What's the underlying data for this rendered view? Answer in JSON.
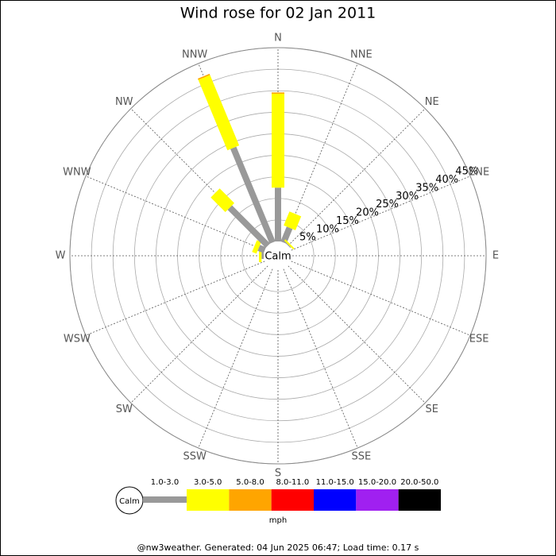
{
  "chart_data": {
    "type": "windrose",
    "title": "Wind rose for 02 Jan 2011",
    "categories": [
      "N",
      "NNE",
      "NE",
      "ENE",
      "E",
      "ESE",
      "SE",
      "SSE",
      "S",
      "SSW",
      "SW",
      "WSW",
      "W",
      "WNW",
      "NW",
      "NNW"
    ],
    "series": [
      {
        "name": "1.0-3.0",
        "color": "#999999",
        "values": [
          12.5,
          3.7,
          0.2,
          0,
          0,
          0,
          0,
          0,
          0,
          0,
          0,
          0,
          0.5,
          1.5,
          12.5,
          23.8
        ]
      },
      {
        "name": "3.0-5.0",
        "color": "#ffff00",
        "values": [
          21.8,
          3.5,
          0.4,
          0,
          0,
          0,
          0,
          0,
          0,
          0,
          0,
          0,
          0.6,
          1.1,
          4.8,
          17.7
        ]
      },
      {
        "name": "5.0-8.0",
        "color": "#ffa500",
        "values": [
          0.3,
          0,
          0,
          0,
          0,
          0,
          0,
          0,
          0,
          0,
          0,
          0,
          0,
          0,
          0,
          0.3
        ]
      },
      {
        "name": "8.0-11.0",
        "color": "#ff0000",
        "values": [
          0,
          0,
          0,
          0,
          0,
          0,
          0,
          0,
          0,
          0,
          0,
          0,
          0,
          0,
          0,
          0
        ]
      },
      {
        "name": "11.0-15.0",
        "color": "#0000ff",
        "values": [
          0,
          0,
          0,
          0,
          0,
          0,
          0,
          0,
          0,
          0,
          0,
          0,
          0,
          0,
          0,
          0
        ]
      },
      {
        "name": "15.0-20.0",
        "color": "#a020f0",
        "values": [
          0,
          0,
          0,
          0,
          0,
          0,
          0,
          0,
          0,
          0,
          0,
          0,
          0,
          0,
          0,
          0
        ]
      },
      {
        "name": "20.0-50.0",
        "color": "#000000",
        "values": [
          0,
          0,
          0,
          0,
          0,
          0,
          0,
          0,
          0,
          0,
          0,
          0,
          0,
          0,
          0,
          0
        ]
      }
    ],
    "rlim": [
      0,
      45
    ],
    "rticks": [
      {
        "value": 5,
        "label": "5%"
      },
      {
        "value": 10,
        "label": "10%"
      },
      {
        "value": 15,
        "label": "15%"
      },
      {
        "value": 20,
        "label": "20%"
      },
      {
        "value": 25,
        "label": "25%"
      },
      {
        "value": 30,
        "label": "30%"
      },
      {
        "value": 35,
        "label": "35%"
      },
      {
        "value": 40,
        "label": "40%"
      },
      {
        "value": 45,
        "label": "45%"
      }
    ],
    "calm_label": "Calm",
    "legend_unit": "mph",
    "footer": "@nw3weather. Generated: 04 Jun 2025 06:47; Load time: 0.17 s"
  }
}
